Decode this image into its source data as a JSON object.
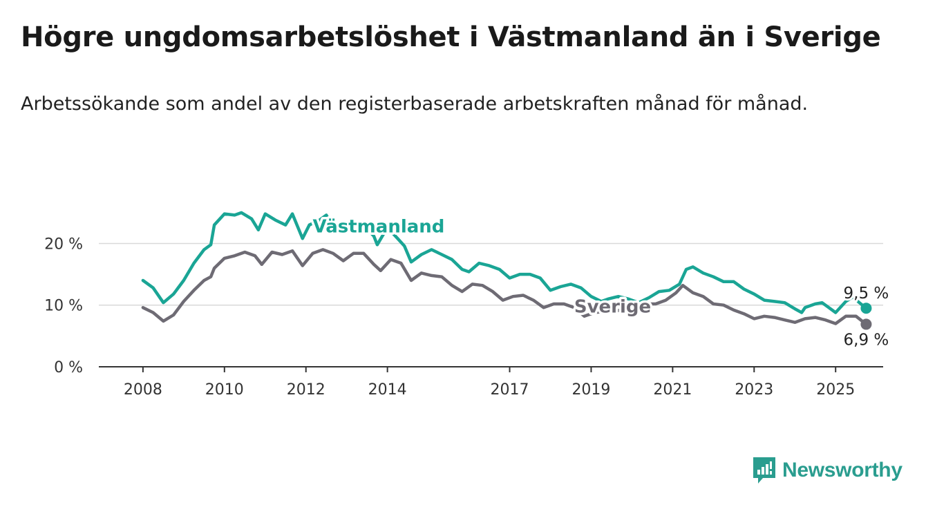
{
  "title": "Högre ungdomsarbetslöshet i Västmanland än i Sverige",
  "subtitle": "Arbetssökande som andel av den registerbaserade arbetskraften månad för månad.",
  "brand": {
    "name": "Newsworthy",
    "color": "#2a9d8f"
  },
  "chart_data": {
    "type": "line",
    "x_ticks": [
      "2008",
      "2010",
      "2012",
      "2014",
      "2017",
      "2019",
      "2021",
      "2023",
      "2025"
    ],
    "y_ticks": [
      {
        "value": 0,
        "label": "0 %"
      },
      {
        "value": 10,
        "label": "10 %"
      },
      {
        "value": 20,
        "label": "20 %"
      }
    ],
    "ylim": [
      0,
      27
    ],
    "xlim": [
      "2006-12",
      "2026-03"
    ],
    "grid": true,
    "series": [
      {
        "name": "Västmanland",
        "color": "#1aa595",
        "end_label": "9,5 %",
        "points": [
          [
            "2008-01",
            14.0
          ],
          [
            "2008-04",
            12.8
          ],
          [
            "2008-07",
            10.4
          ],
          [
            "2008-10",
            11.8
          ],
          [
            "2009-01",
            14.0
          ],
          [
            "2009-04",
            16.8
          ],
          [
            "2009-07",
            19.0
          ],
          [
            "2009-09",
            19.8
          ],
          [
            "2009-10",
            23.0
          ],
          [
            "2010-01",
            24.8
          ],
          [
            "2010-04",
            24.6
          ],
          [
            "2010-06",
            25.0
          ],
          [
            "2010-09",
            24.0
          ],
          [
            "2010-11",
            22.2
          ],
          [
            "2011-01",
            24.8
          ],
          [
            "2011-04",
            23.8
          ],
          [
            "2011-07",
            23.0
          ],
          [
            "2011-09",
            24.8
          ],
          [
            "2011-12",
            20.8
          ],
          [
            "2012-02",
            23.0
          ],
          [
            "2012-05",
            23.8
          ],
          [
            "2012-07",
            24.6
          ],
          [
            "2012-09",
            22.6
          ],
          [
            "2012-12",
            21.8
          ],
          [
            "2013-03",
            23.6
          ],
          [
            "2013-06",
            23.0
          ],
          [
            "2013-09",
            21.2
          ],
          [
            "2013-10",
            19.8
          ],
          [
            "2014-01",
            22.6
          ],
          [
            "2014-04",
            20.8
          ],
          [
            "2014-06",
            19.6
          ],
          [
            "2014-08",
            17.0
          ],
          [
            "2014-11",
            18.2
          ],
          [
            "2015-02",
            19.0
          ],
          [
            "2015-05",
            18.2
          ],
          [
            "2015-08",
            17.4
          ],
          [
            "2015-11",
            15.8
          ],
          [
            "2016-01",
            15.4
          ],
          [
            "2016-04",
            16.8
          ],
          [
            "2016-07",
            16.4
          ],
          [
            "2016-10",
            15.8
          ],
          [
            "2017-01",
            14.4
          ],
          [
            "2017-04",
            15.0
          ],
          [
            "2017-07",
            15.0
          ],
          [
            "2017-10",
            14.4
          ],
          [
            "2018-01",
            12.4
          ],
          [
            "2018-04",
            13.0
          ],
          [
            "2018-07",
            13.4
          ],
          [
            "2018-10",
            12.8
          ],
          [
            "2019-01",
            11.4
          ],
          [
            "2019-04",
            10.6
          ],
          [
            "2019-06",
            11.0
          ],
          [
            "2019-09",
            11.4
          ],
          [
            "2019-12",
            11.0
          ],
          [
            "2020-03",
            10.4
          ],
          [
            "2020-06",
            11.2
          ],
          [
            "2020-09",
            12.2
          ],
          [
            "2020-12",
            12.4
          ],
          [
            "2021-03",
            13.4
          ],
          [
            "2021-05",
            15.8
          ],
          [
            "2021-07",
            16.2
          ],
          [
            "2021-10",
            15.2
          ],
          [
            "2022-01",
            14.6
          ],
          [
            "2022-04",
            13.8
          ],
          [
            "2022-07",
            13.8
          ],
          [
            "2022-10",
            12.6
          ],
          [
            "2023-01",
            11.8
          ],
          [
            "2023-04",
            10.8
          ],
          [
            "2023-07",
            10.6
          ],
          [
            "2023-10",
            10.4
          ],
          [
            "2024-01",
            9.4
          ],
          [
            "2024-03",
            8.8
          ],
          [
            "2024-04",
            9.6
          ],
          [
            "2024-07",
            10.2
          ],
          [
            "2024-09",
            10.4
          ],
          [
            "2024-11",
            9.6
          ],
          [
            "2025-01",
            8.8
          ],
          [
            "2025-04",
            10.6
          ],
          [
            "2025-06",
            11.3
          ],
          [
            "2025-08",
            10.4
          ],
          [
            "2025-10",
            9.5
          ]
        ]
      },
      {
        "name": "Sverige",
        "color": "#6e6b74",
        "end_label": "6,9 %",
        "points": [
          [
            "2008-01",
            9.6
          ],
          [
            "2008-04",
            8.8
          ],
          [
            "2008-07",
            7.4
          ],
          [
            "2008-10",
            8.4
          ],
          [
            "2009-01",
            10.6
          ],
          [
            "2009-04",
            12.4
          ],
          [
            "2009-07",
            14.0
          ],
          [
            "2009-09",
            14.6
          ],
          [
            "2009-10",
            16.0
          ],
          [
            "2010-01",
            17.6
          ],
          [
            "2010-04",
            18.0
          ],
          [
            "2010-07",
            18.6
          ],
          [
            "2010-10",
            18.0
          ],
          [
            "2010-12",
            16.6
          ],
          [
            "2011-03",
            18.6
          ],
          [
            "2011-06",
            18.2
          ],
          [
            "2011-09",
            18.8
          ],
          [
            "2011-12",
            16.4
          ],
          [
            "2012-03",
            18.4
          ],
          [
            "2012-06",
            19.0
          ],
          [
            "2012-09",
            18.4
          ],
          [
            "2012-12",
            17.2
          ],
          [
            "2013-03",
            18.4
          ],
          [
            "2013-06",
            18.4
          ],
          [
            "2013-09",
            16.6
          ],
          [
            "2013-11",
            15.6
          ],
          [
            "2014-02",
            17.4
          ],
          [
            "2014-05",
            16.8
          ],
          [
            "2014-08",
            14.0
          ],
          [
            "2014-11",
            15.2
          ],
          [
            "2015-02",
            14.8
          ],
          [
            "2015-05",
            14.6
          ],
          [
            "2015-08",
            13.2
          ],
          [
            "2015-11",
            12.2
          ],
          [
            "2016-02",
            13.4
          ],
          [
            "2016-05",
            13.2
          ],
          [
            "2016-08",
            12.2
          ],
          [
            "2016-11",
            10.8
          ],
          [
            "2017-02",
            11.4
          ],
          [
            "2017-05",
            11.6
          ],
          [
            "2017-08",
            10.8
          ],
          [
            "2017-11",
            9.6
          ],
          [
            "2018-02",
            10.2
          ],
          [
            "2018-05",
            10.2
          ],
          [
            "2018-08",
            9.6
          ],
          [
            "2018-11",
            8.2
          ],
          [
            "2019-02",
            8.8
          ],
          [
            "2019-05",
            9.0
          ],
          [
            "2019-08",
            9.0
          ],
          [
            "2019-11",
            9.4
          ],
          [
            "2020-02",
            9.6
          ],
          [
            "2020-05",
            10.2
          ],
          [
            "2020-08",
            10.2
          ],
          [
            "2020-11",
            10.8
          ],
          [
            "2021-02",
            12.0
          ],
          [
            "2021-04",
            13.2
          ],
          [
            "2021-07",
            12.0
          ],
          [
            "2021-10",
            11.4
          ],
          [
            "2022-01",
            10.2
          ],
          [
            "2022-04",
            10.0
          ],
          [
            "2022-07",
            9.2
          ],
          [
            "2022-10",
            8.6
          ],
          [
            "2023-01",
            7.8
          ],
          [
            "2023-04",
            8.2
          ],
          [
            "2023-07",
            8.0
          ],
          [
            "2023-10",
            7.6
          ],
          [
            "2024-01",
            7.2
          ],
          [
            "2024-04",
            7.8
          ],
          [
            "2024-07",
            8.0
          ],
          [
            "2024-10",
            7.6
          ],
          [
            "2025-01",
            7.0
          ],
          [
            "2025-04",
            8.2
          ],
          [
            "2025-07",
            8.2
          ],
          [
            "2025-10",
            6.9
          ]
        ]
      }
    ]
  }
}
